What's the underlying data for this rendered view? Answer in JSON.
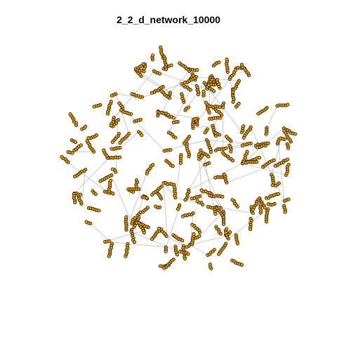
{
  "title": "2_2_d_network_10000",
  "colors": {
    "background": "#ffffff",
    "node_fill": "#E69F00",
    "node_stroke": "#000000",
    "edge": "#BEBEBE",
    "title": "#000000"
  },
  "network": {
    "layout": "force-directed",
    "node_shape": "circle"
  }
}
